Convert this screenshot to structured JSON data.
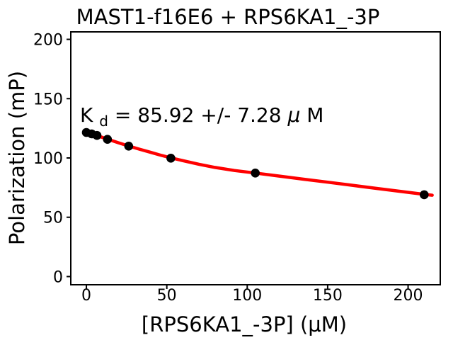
{
  "chart_data": {
    "type": "scatter",
    "title": "MAST1-f16E6 + RPS6KA1_-3P",
    "xlabel": "[RPS6KA1_-3P] (μM)",
    "ylabel": "Polarization (mP)",
    "xlim": [
      -9.7,
      220
    ],
    "ylim": [
      -6.9,
      206.3
    ],
    "x_ticks": [
      0,
      50,
      100,
      150,
      200
    ],
    "y_ticks": [
      0,
      50,
      100,
      150,
      200
    ],
    "grid": false,
    "legend": "none",
    "kd_um": 85.92,
    "kd_err_um": 7.28,
    "series": [
      {
        "name": "fit-curve",
        "type": "line",
        "color": "#ff0000",
        "x": [
          0,
          6.5,
          13.1,
          20,
          26.3,
          33,
          40,
          46,
          52.5,
          60,
          70,
          80,
          92,
          105,
          120,
          135,
          150,
          165,
          180,
          195,
          210,
          215
        ],
        "y": [
          121.8,
          118.9,
          115.9,
          112.8,
          110.1,
          107.4,
          104.7,
          102.4,
          100.1,
          97.7,
          94.7,
          92.0,
          89.4,
          87.3,
          84.7,
          82.1,
          79.6,
          77.0,
          74.4,
          71.9,
          69.3,
          68.6
        ]
      },
      {
        "name": "measured-points",
        "type": "scatter",
        "color": "#000000",
        "x": [
          0,
          3.3,
          6.6,
          13.1,
          26.3,
          52.5,
          105,
          210
        ],
        "y": [
          121.5,
          120.3,
          119.0,
          115.7,
          110.0,
          99.8,
          87.3,
          69.0
        ]
      }
    ]
  },
  "annotation": {
    "k": "K",
    "sub": "d",
    "value": " = 85.92 +/- 7.28 ",
    "mu": "μ",
    "m": "M"
  },
  "colors": {
    "curve": "#ff0000",
    "points": "#000000",
    "axes": "#000000",
    "background": "#ffffff"
  }
}
